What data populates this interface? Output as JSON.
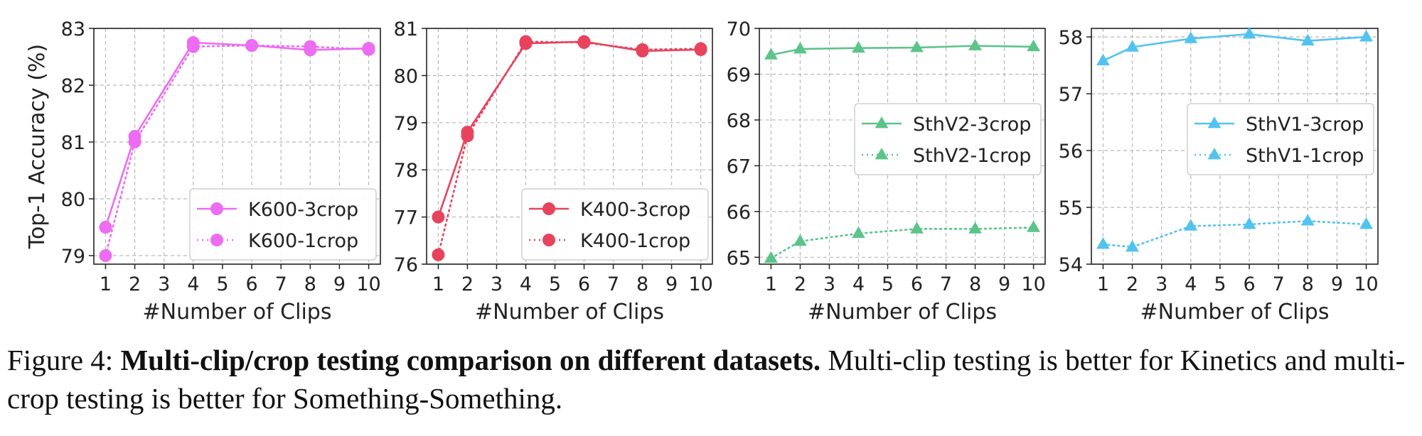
{
  "chart_data": [
    {
      "type": "line",
      "ylabel": "Top-1 Accuracy (%)",
      "xlabel": "#Number of Clips",
      "x": [
        1,
        2,
        4,
        6,
        8,
        10
      ],
      "xticks": [
        1,
        2,
        3,
        4,
        5,
        6,
        7,
        8,
        9,
        10
      ],
      "xlim": [
        0.6,
        10.4
      ],
      "ylim": [
        78.85,
        83.0
      ],
      "yticks": [
        79,
        80,
        81,
        82,
        83
      ],
      "grid": true,
      "legend_position": "lower-right",
      "color": "#ec6cf2",
      "marker": "circle",
      "series": [
        {
          "name": "K600-3crop",
          "line": "solid",
          "values": [
            79.5,
            81.1,
            82.75,
            82.7,
            82.62,
            82.65
          ]
        },
        {
          "name": "K600-1crop",
          "line": "dotted",
          "values": [
            79.0,
            81.0,
            82.68,
            82.7,
            82.68,
            82.63
          ]
        }
      ]
    },
    {
      "type": "line",
      "ylabel": "",
      "xlabel": "#Number of Clips",
      "x": [
        1,
        2,
        4,
        6,
        8,
        10
      ],
      "xticks": [
        1,
        2,
        3,
        4,
        5,
        6,
        7,
        8,
        9,
        10
      ],
      "xlim": [
        0.6,
        10.4
      ],
      "ylim": [
        76.0,
        81.0
      ],
      "yticks": [
        76,
        77,
        78,
        79,
        80,
        81
      ],
      "grid": true,
      "legend_position": "lower-right",
      "color": "#e8435d",
      "marker": "circle",
      "series": [
        {
          "name": "K400-3crop",
          "line": "solid",
          "values": [
            77.0,
            78.8,
            80.68,
            80.72,
            80.52,
            80.55
          ]
        },
        {
          "name": "K400-1crop",
          "line": "dotted",
          "values": [
            76.2,
            78.72,
            80.72,
            80.7,
            80.55,
            80.57
          ]
        }
      ]
    },
    {
      "type": "line",
      "ylabel": "",
      "xlabel": "#Number of Clips",
      "x": [
        1,
        2,
        4,
        6,
        8,
        10
      ],
      "xticks": [
        1,
        2,
        3,
        4,
        5,
        6,
        7,
        8,
        9,
        10
      ],
      "xlim": [
        0.6,
        10.4
      ],
      "ylim": [
        64.85,
        70.0
      ],
      "yticks": [
        65,
        66,
        67,
        68,
        69,
        70
      ],
      "grid": true,
      "legend_position": "center-right",
      "color": "#5cc48a",
      "marker": "triangle",
      "series": [
        {
          "name": "SthV2-3crop",
          "line": "solid",
          "values": [
            69.42,
            69.55,
            69.57,
            69.58,
            69.62,
            69.6
          ]
        },
        {
          "name": "SthV2-1crop",
          "line": "dotted",
          "values": [
            64.98,
            65.35,
            65.52,
            65.62,
            65.62,
            65.65
          ]
        }
      ]
    },
    {
      "type": "line",
      "ylabel": "",
      "xlabel": "#Number of Clips",
      "x": [
        1,
        2,
        4,
        6,
        8,
        10
      ],
      "xticks": [
        1,
        2,
        3,
        4,
        5,
        6,
        7,
        8,
        9,
        10
      ],
      "xlim": [
        0.6,
        10.4
      ],
      "ylim": [
        54.0,
        58.15
      ],
      "yticks": [
        54,
        55,
        56,
        57,
        58
      ],
      "grid": true,
      "legend_position": "center-right",
      "color": "#52c3f0",
      "marker": "triangle",
      "series": [
        {
          "name": "SthV1-3crop",
          "line": "solid",
          "values": [
            57.58,
            57.82,
            57.97,
            58.05,
            57.93,
            58.0
          ]
        },
        {
          "name": "SthV1-1crop",
          "line": "dotted",
          "values": [
            54.35,
            54.3,
            54.67,
            54.7,
            54.76,
            54.7
          ]
        }
      ]
    }
  ],
  "caption": {
    "label": "Figure 4:",
    "bold": "Multi-clip/crop testing comparison on different datasets.",
    "text": "Multi-clip testing is better for Kinetics and multi-crop testing is better for Something-Something."
  }
}
